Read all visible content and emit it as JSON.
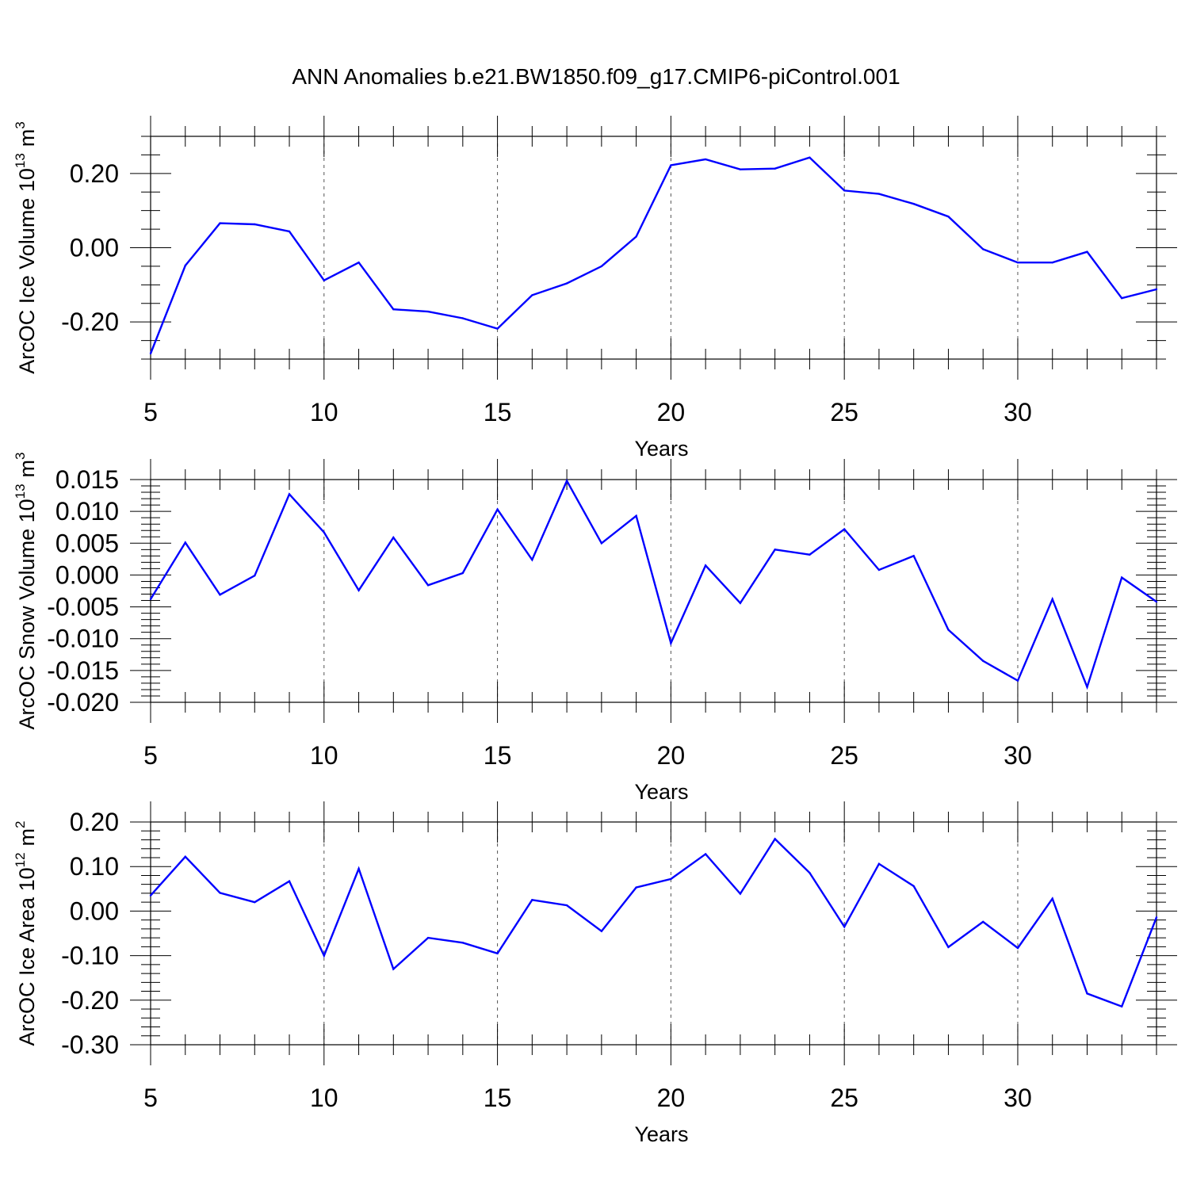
{
  "title": "ANN Anomalies b.e21.BW1850.f09_g17.CMIP6-piControl.001",
  "colors": {
    "line": "#0000ff",
    "axis": "#000000",
    "grid": "#555555"
  },
  "chart_data": [
    {
      "type": "line",
      "id": "ice-volume",
      "ylabel": "ArcOC Ice Volume 10",
      "ylabel_exp": "13",
      "ylabel_unit": "m",
      "ylabel_unit_exp": "3",
      "xlabel": "Years",
      "xlim": [
        5,
        34
      ],
      "ylim": [
        -0.3,
        0.3
      ],
      "xticks": [
        5,
        10,
        15,
        20,
        25,
        30
      ],
      "xtick_labels": [
        "5",
        "10",
        "15",
        "20",
        "25",
        "30"
      ],
      "yticks": [
        -0.2,
        0.0,
        0.2
      ],
      "ytick_labels": [
        "-0.20",
        "0.00",
        "0.20"
      ],
      "yminor": 0.05,
      "x": [
        5,
        6,
        7,
        8,
        9,
        10,
        11,
        12,
        13,
        14,
        15,
        16,
        17,
        18,
        19,
        20,
        21,
        22,
        23,
        24,
        25,
        26,
        27,
        28,
        29,
        30,
        31,
        32,
        33,
        34
      ],
      "values": [
        -0.285,
        -0.048,
        0.066,
        0.063,
        0.044,
        -0.088,
        -0.04,
        -0.166,
        -0.172,
        -0.19,
        -0.218,
        -0.128,
        -0.096,
        -0.05,
        0.03,
        0.222,
        0.238,
        0.211,
        0.213,
        0.243,
        0.154,
        0.145,
        0.118,
        0.084,
        -0.004,
        -0.04,
        -0.04,
        -0.011,
        -0.136,
        -0.112
      ]
    },
    {
      "type": "line",
      "id": "snow-volume",
      "ylabel": "ArcOC Snow Volume 10",
      "ylabel_exp": "13",
      "ylabel_unit": "m",
      "ylabel_unit_exp": "3",
      "xlabel": "Years",
      "xlim": [
        5,
        34
      ],
      "ylim": [
        -0.02,
        0.015
      ],
      "xticks": [
        5,
        10,
        15,
        20,
        25,
        30
      ],
      "xtick_labels": [
        "5",
        "10",
        "15",
        "20",
        "25",
        "30"
      ],
      "yticks": [
        -0.02,
        -0.015,
        -0.01,
        -0.005,
        0.0,
        0.005,
        0.01,
        0.015
      ],
      "ytick_labels": [
        "-0.020",
        "-0.015",
        "-0.010",
        "-0.005",
        "0.000",
        "0.005",
        "0.010",
        "0.015"
      ],
      "yminor": 0.001,
      "x": [
        5,
        6,
        7,
        8,
        9,
        10,
        11,
        12,
        13,
        14,
        15,
        16,
        17,
        18,
        19,
        20,
        21,
        22,
        23,
        24,
        25,
        26,
        27,
        28,
        29,
        30,
        31,
        32,
        33,
        34
      ],
      "values": [
        -0.0038,
        0.0051,
        -0.0031,
        -0.0001,
        0.0127,
        0.0067,
        -0.0024,
        0.0059,
        -0.0016,
        0.0003,
        0.0103,
        0.0024,
        0.0148,
        0.005,
        0.0093,
        -0.0107,
        0.0015,
        -0.0044,
        0.004,
        0.0032,
        0.0072,
        0.0008,
        0.003,
        -0.0086,
        -0.0135,
        -0.0166,
        -0.0038,
        -0.0176,
        -0.0004,
        -0.0042
      ]
    },
    {
      "type": "line",
      "id": "ice-area",
      "ylabel": "ArcOC Ice Area 10",
      "ylabel_exp": "12",
      "ylabel_unit": "m",
      "ylabel_unit_exp": "2",
      "xlabel": "Years",
      "xlim": [
        5,
        34
      ],
      "ylim": [
        -0.3,
        0.2
      ],
      "xticks": [
        5,
        10,
        15,
        20,
        25,
        30
      ],
      "xtick_labels": [
        "5",
        "10",
        "15",
        "20",
        "25",
        "30"
      ],
      "yticks": [
        -0.3,
        -0.2,
        -0.1,
        0.0,
        0.1,
        0.2
      ],
      "ytick_labels": [
        "-0.30",
        "-0.20",
        "-0.10",
        "0.00",
        "0.10",
        "0.20"
      ],
      "yminor": 0.02,
      "x": [
        5,
        6,
        7,
        8,
        9,
        10,
        11,
        12,
        13,
        14,
        15,
        16,
        17,
        18,
        19,
        20,
        21,
        22,
        23,
        24,
        25,
        26,
        27,
        28,
        29,
        30,
        31,
        32,
        33,
        34
      ],
      "values": [
        0.035,
        0.122,
        0.041,
        0.02,
        0.067,
        -0.1,
        0.095,
        -0.13,
        -0.06,
        -0.071,
        -0.095,
        0.025,
        0.013,
        -0.045,
        0.053,
        0.072,
        0.128,
        0.039,
        0.162,
        0.086,
        -0.035,
        0.106,
        0.056,
        -0.081,
        -0.024,
        -0.083,
        0.028,
        -0.185,
        -0.214,
        -0.014
      ]
    }
  ]
}
